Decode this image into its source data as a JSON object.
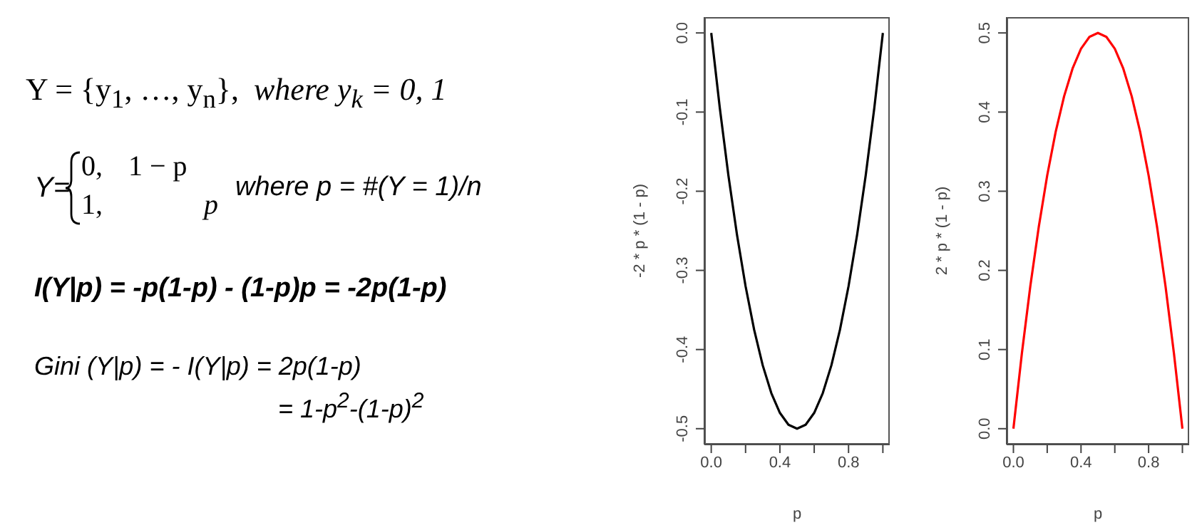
{
  "chart_data": [
    {
      "type": "other",
      "annotations": [
        "Y = {y$_{1}$, …, y$_{n}$},",
        "where  y$_{k}$ = 0, 1",
        "Y=",
        "0,",
        "1 − p",
        "1,",
        "p",
        "where p = #(Y = 1)/n",
        "I(Y|p) = -p(1-p) - (1-p)p = -2p(1-p)",
        "Gini (Y|p) = - I(Y|p) = 2p(1-p)",
        "= 1-p$^{2}$-(1-p)$^{2}$"
      ]
    },
    {
      "type": "line",
      "xlabel": "p",
      "ylabel": "-2 * p * (1 - p)",
      "x": [
        0,
        0.05,
        0.1,
        0.15,
        0.2,
        0.25,
        0.3,
        0.35,
        0.4,
        0.45,
        0.5,
        0.55,
        0.6,
        0.65,
        0.7,
        0.75,
        0.8,
        0.85,
        0.9,
        0.95,
        1
      ],
      "series": [
        {
          "color": "#000000",
          "values": [
            0,
            -0.095,
            -0.18,
            -0.255,
            -0.32,
            -0.375,
            -0.42,
            -0.455,
            -0.48,
            -0.495,
            -0.5,
            -0.495,
            -0.48,
            -0.455,
            -0.42,
            -0.375,
            -0.32,
            -0.255,
            -0.18,
            -0.095,
            0
          ]
        }
      ],
      "xlim": [
        -0.04,
        1.04
      ],
      "ylim": [
        -0.52,
        0.02
      ],
      "xticks": [
        {
          "value": 0,
          "label": "0.0"
        },
        {
          "value": 0.2,
          "label": null
        },
        {
          "value": 0.4,
          "label": "0.4"
        },
        {
          "value": 0.6,
          "label": null
        },
        {
          "value": 0.8,
          "label": "0.8"
        },
        {
          "value": 1,
          "label": null
        }
      ],
      "yticks": [
        {
          "value": -0.5,
          "label": "-0.5"
        },
        {
          "value": -0.4,
          "label": "-0.4"
        },
        {
          "value": -0.3,
          "label": "-0.3"
        },
        {
          "value": -0.2,
          "label": "-0.2"
        },
        {
          "value": -0.1,
          "label": "-0.1"
        },
        {
          "value": 0,
          "label": "0.0"
        }
      ]
    },
    {
      "type": "line",
      "xlabel": "p",
      "ylabel": "2 * p * (1 - p)",
      "x": [
        0,
        0.05,
        0.1,
        0.15,
        0.2,
        0.25,
        0.3,
        0.35,
        0.4,
        0.45,
        0.5,
        0.55,
        0.6,
        0.65,
        0.7,
        0.75,
        0.8,
        0.85,
        0.9,
        0.95,
        1
      ],
      "series": [
        {
          "color": "#ff0000",
          "values": [
            0,
            0.095,
            0.18,
            0.255,
            0.32,
            0.375,
            0.42,
            0.455,
            0.48,
            0.495,
            0.5,
            0.495,
            0.48,
            0.455,
            0.42,
            0.375,
            0.32,
            0.255,
            0.18,
            0.095,
            0
          ]
        }
      ],
      "xlim": [
        -0.04,
        1.04
      ],
      "ylim": [
        -0.02,
        0.52
      ],
      "xticks": [
        {
          "value": 0,
          "label": "0.0"
        },
        {
          "value": 0.2,
          "label": null
        },
        {
          "value": 0.4,
          "label": "0.4"
        },
        {
          "value": 0.6,
          "label": null
        },
        {
          "value": 0.8,
          "label": "0.8"
        },
        {
          "value": 1,
          "label": null
        }
      ],
      "yticks": [
        {
          "value": 0,
          "label": "0.0"
        },
        {
          "value": 0.1,
          "label": "0.1"
        },
        {
          "value": 0.2,
          "label": "0.2"
        },
        {
          "value": 0.3,
          "label": "0.3"
        },
        {
          "value": 0.4,
          "label": "0.4"
        },
        {
          "value": 0.5,
          "label": "0.5"
        }
      ]
    }
  ]
}
